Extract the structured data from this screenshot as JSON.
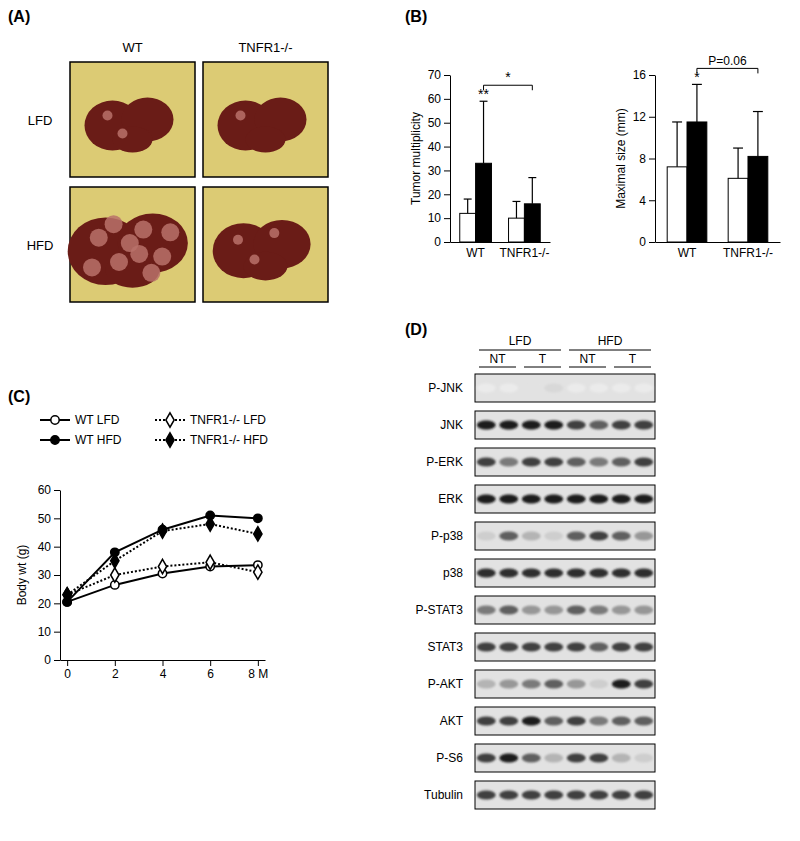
{
  "panel_labels": [
    "(A)",
    "(B)",
    "(C)",
    "(D)"
  ],
  "photos": {
    "columns": [
      "WT",
      "TNFR1-/-"
    ],
    "rows": [
      "LFD",
      "HFD"
    ]
  },
  "chart_data": [
    {
      "type": "bar",
      "y_label": "Tumor multiplicity",
      "categories": [
        "WT",
        "TNFR1-/-"
      ],
      "series": [
        {
          "color": "#ffffff",
          "values": [
            12,
            10
          ],
          "errors": [
            6,
            7
          ]
        },
        {
          "color": "#000000",
          "values": [
            33,
            16
          ],
          "errors": [
            26,
            11
          ]
        }
      ],
      "ylim": [
        0,
        70
      ],
      "yticks": [
        0,
        10,
        20,
        30,
        40,
        50,
        60,
        70
      ],
      "annotations": [
        {
          "text": "**",
          "category": 0,
          "series": 1
        },
        {
          "text": "*",
          "from": 0,
          "to": 1,
          "series": 1
        }
      ]
    },
    {
      "type": "bar",
      "y_label": "Maximal size (mm)",
      "categories": [
        "WT",
        "TNFR1-/-"
      ],
      "series": [
        {
          "color": "#ffffff",
          "values": [
            7.2,
            6.1
          ],
          "errors": [
            4.3,
            2.9
          ]
        },
        {
          "color": "#000000",
          "values": [
            11.5,
            8.2
          ],
          "errors": [
            3.6,
            4.3
          ]
        }
      ],
      "ylim": [
        0,
        16
      ],
      "yticks": [
        0,
        4,
        8,
        12,
        16
      ],
      "annotations": [
        {
          "text": "*",
          "category": 0,
          "series": 1
        },
        {
          "text": "P=0.06",
          "from": 0,
          "to": 1,
          "series": 1
        }
      ]
    },
    {
      "type": "line",
      "y_label": "Body wt (g)",
      "x": [
        0,
        2,
        4,
        6,
        8
      ],
      "xlim": [
        -0.3,
        8.3
      ],
      "xticks": [
        0,
        2,
        4,
        6,
        {
          "value": 8,
          "label": "8 M"
        }
      ],
      "ylim": [
        0,
        60
      ],
      "yticks": [
        0,
        10,
        20,
        30,
        40,
        50,
        60
      ],
      "legend": "top",
      "series": [
        {
          "name": "WT LFD",
          "color": "#000000",
          "marker": "circle-open",
          "line_style": "solid",
          "values": [
            20.5,
            26.5,
            30.5,
            33,
            33.5
          ]
        },
        {
          "name": "TNFR1-/- LFD",
          "color": "#000000",
          "marker": "diamond-open",
          "line_style": "dotted",
          "values": [
            23,
            30,
            33,
            34.5,
            31
          ]
        },
        {
          "name": "WT HFD",
          "color": "#000000",
          "marker": "circle",
          "line_style": "solid",
          "values": [
            20.5,
            38,
            46,
            51,
            50
          ]
        },
        {
          "name": "TNFR1-/- HFD",
          "color": "#000000",
          "marker": "diamond",
          "line_style": "dotted",
          "values": [
            23,
            35,
            45.5,
            48,
            44.5
          ]
        }
      ]
    }
  ],
  "blot": {
    "groups": [
      "LFD",
      "HFD"
    ],
    "treatments": [
      "NT",
      "T",
      "NT",
      "T"
    ],
    "rows": [
      {
        "label": "P-JNK",
        "intensity": [
          0.15,
          0.15,
          0.2,
          0.25,
          0.15,
          0.15,
          0.15,
          0.15
        ]
      },
      {
        "label": "JNK",
        "intensity": [
          0.9,
          0.9,
          0.9,
          0.9,
          0.8,
          0.7,
          0.8,
          0.8
        ]
      },
      {
        "label": "P-ERK",
        "intensity": [
          0.8,
          0.6,
          0.8,
          0.8,
          0.7,
          0.6,
          0.7,
          0.8
        ]
      },
      {
        "label": "ERK",
        "intensity": [
          0.9,
          0.9,
          0.9,
          0.9,
          0.9,
          0.9,
          0.9,
          0.9
        ]
      },
      {
        "label": "P-p38",
        "intensity": [
          0.3,
          0.7,
          0.4,
          0.3,
          0.7,
          0.8,
          0.7,
          0.5
        ]
      },
      {
        "label": "p38",
        "intensity": [
          0.85,
          0.85,
          0.85,
          0.85,
          0.85,
          0.85,
          0.85,
          0.85
        ]
      },
      {
        "label": "P-STAT3",
        "intensity": [
          0.6,
          0.7,
          0.5,
          0.5,
          0.7,
          0.6,
          0.5,
          0.5
        ]
      },
      {
        "label": "STAT3",
        "intensity": [
          0.8,
          0.8,
          0.8,
          0.8,
          0.8,
          0.7,
          0.8,
          0.8
        ]
      },
      {
        "label": "P-AKT",
        "intensity": [
          0.4,
          0.5,
          0.6,
          0.7,
          0.5,
          0.3,
          0.9,
          0.8
        ]
      },
      {
        "label": "AKT",
        "intensity": [
          0.8,
          0.8,
          0.9,
          0.7,
          0.8,
          0.6,
          0.7,
          0.7
        ]
      },
      {
        "label": "P-S6",
        "intensity": [
          0.8,
          0.9,
          0.7,
          0.4,
          0.8,
          0.8,
          0.4,
          0.3
        ]
      },
      {
        "label": "Tubulin",
        "intensity": [
          0.8,
          0.8,
          0.8,
          0.8,
          0.8,
          0.8,
          0.8,
          0.8
        ]
      }
    ]
  }
}
